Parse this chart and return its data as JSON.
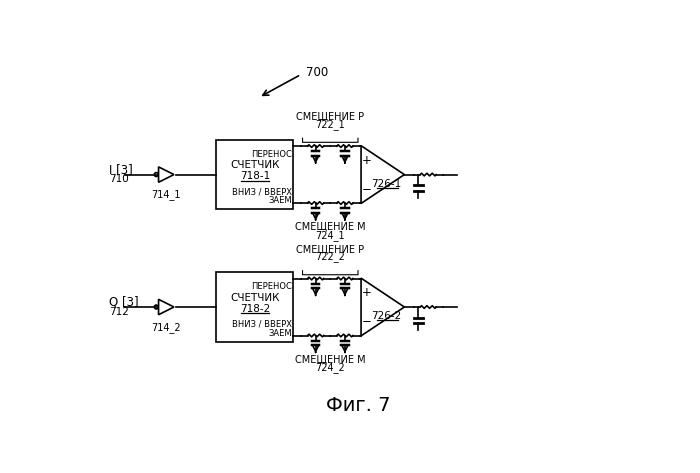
{
  "title": "Фиг. 7",
  "label_700": "700",
  "label_710": "710",
  "label_712": "712",
  "label_I": "I [3]",
  "label_Q": "Q [3]",
  "label_714_1": "714_1",
  "label_714_2": "714_2",
  "label_718_1": "718-1",
  "label_718_2": "718-2",
  "label_counter": "СЧЕТЧИК",
  "label_carry": "ПЕРЕНОС",
  "label_borrow": "ЗАЕМ",
  "label_updown": "ВНИЗ / ВВЕРХ",
  "label_722_1": "722_1",
  "label_722_2": "722_2",
  "label_724_1": "724_1",
  "label_724_2": "724_2",
  "label_726_1": "726-1",
  "label_726_2": "726-2",
  "label_smes_p": "СМЕЩЕНИЕ Р",
  "label_smes_m": "СМЕЩЕНИЕ М",
  "bg_color": "#ffffff",
  "line_color": "#000000",
  "font_size": 7.5
}
